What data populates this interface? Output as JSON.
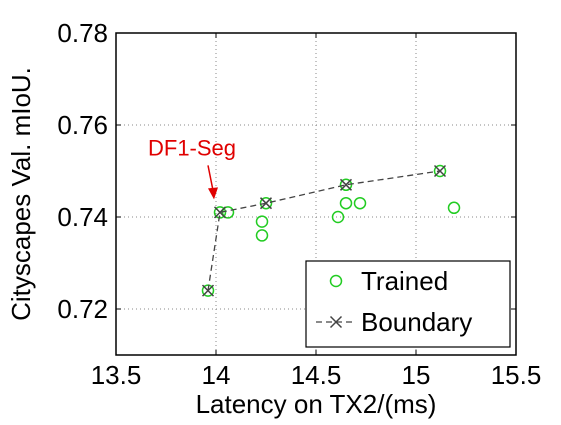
{
  "chart_data": {
    "type": "scatter",
    "title": "",
    "xlabel": "Latency on TX2/(ms)",
    "ylabel": "Cityscapes Val. mIoU.",
    "xlim": [
      13.5,
      15.5
    ],
    "ylim": [
      0.71,
      0.78
    ],
    "x_ticks": [
      "13.5",
      "14",
      "14.5",
      "15",
      "15.5"
    ],
    "y_ticks": [
      "0.72",
      "0.74",
      "0.76",
      "0.78"
    ],
    "x_tick_values": [
      13.5,
      14.0,
      14.5,
      15.0,
      15.5
    ],
    "y_tick_values": [
      0.72,
      0.74,
      0.76,
      0.78
    ],
    "grid": true,
    "legend_position": "bottom-right",
    "series": [
      {
        "name": "Trained",
        "marker": "circle",
        "color": "#22cc22",
        "points": [
          {
            "x": 13.96,
            "y": 0.724
          },
          {
            "x": 14.02,
            "y": 0.741
          },
          {
            "x": 14.06,
            "y": 0.741
          },
          {
            "x": 14.23,
            "y": 0.736
          },
          {
            "x": 14.23,
            "y": 0.739
          },
          {
            "x": 14.25,
            "y": 0.743
          },
          {
            "x": 14.61,
            "y": 0.74
          },
          {
            "x": 14.65,
            "y": 0.743
          },
          {
            "x": 14.65,
            "y": 0.747
          },
          {
            "x": 14.72,
            "y": 0.743
          },
          {
            "x": 15.12,
            "y": 0.75
          },
          {
            "x": 15.19,
            "y": 0.742
          }
        ]
      },
      {
        "name": "Boundary",
        "marker": "x",
        "line": "dashed",
        "color": "#444444",
        "points": [
          {
            "x": 13.96,
            "y": 0.724
          },
          {
            "x": 14.02,
            "y": 0.741
          },
          {
            "x": 14.25,
            "y": 0.743
          },
          {
            "x": 14.65,
            "y": 0.747
          },
          {
            "x": 15.12,
            "y": 0.75
          }
        ]
      }
    ],
    "annotations": [
      {
        "text": "DF1-Seg",
        "color": "#e00000",
        "arrow_to": {
          "x": 14.0,
          "y": 0.741
        }
      }
    ]
  }
}
